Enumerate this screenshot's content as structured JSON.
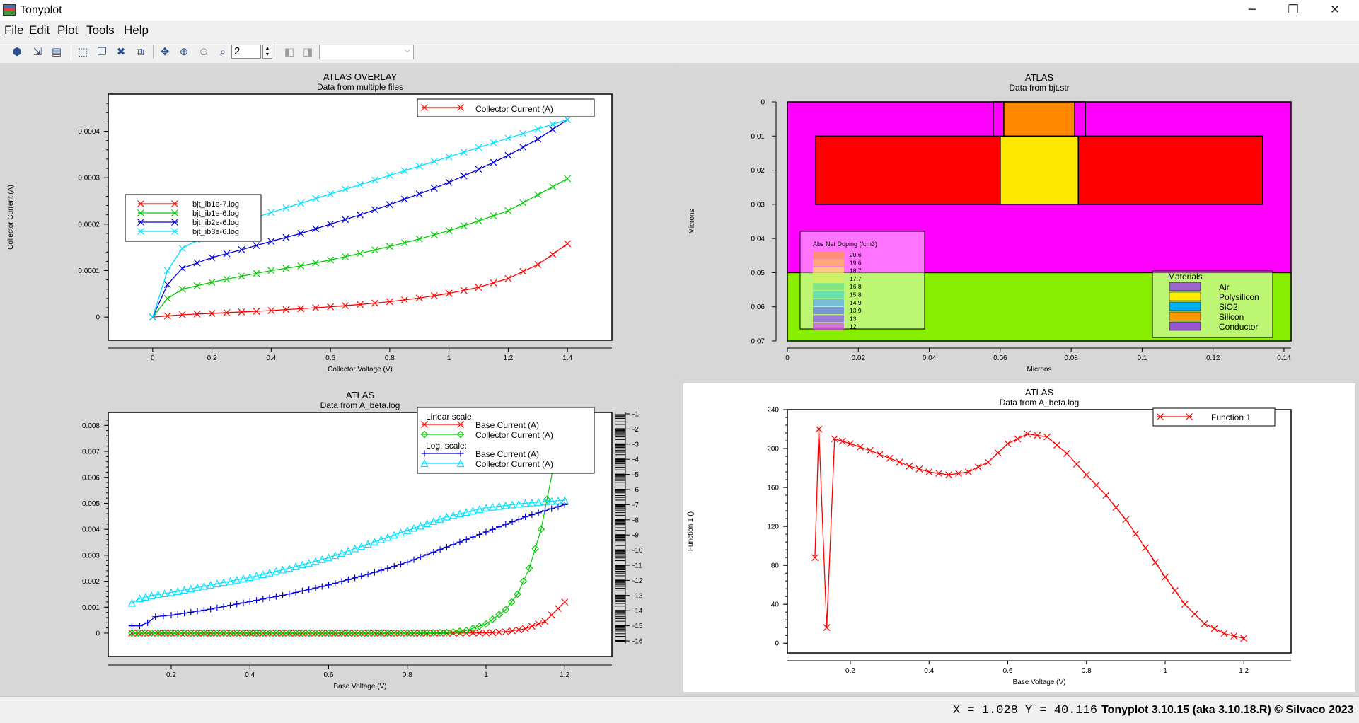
{
  "window": {
    "title": "Tonyplot",
    "minimize_glyph": "─",
    "restore_glyph": "❐",
    "close_glyph": "✕"
  },
  "menu": {
    "items": [
      {
        "label": "File",
        "accel": "F",
        "rest": "ile"
      },
      {
        "label": "Edit",
        "accel": "E",
        "rest": "dit"
      },
      {
        "label": "Plot",
        "accel": "P",
        "rest": "lot"
      },
      {
        "label": "Tools",
        "accel": "T",
        "rest": "ools"
      },
      {
        "label": "Help",
        "accel": "H",
        "rest": "elp"
      }
    ]
  },
  "toolbar": {
    "zoom_value": "2",
    "combo_value": "",
    "icons": [
      "load-icon",
      "export-icon",
      "print-icon",
      "select-region-icon",
      "copy-icon",
      "delete-icon",
      "copy-stack-icon",
      "pan-icon",
      "zoom-in-icon",
      "zoom-out-icon",
      "zoom-box-icon",
      "prev-frame-icon",
      "next-frame-icon"
    ]
  },
  "panels": {
    "overlay": {
      "chart_data": {
        "type": "line",
        "title": "ATLAS OVERLAY",
        "subtitle": "Data from multiple files",
        "xlabel": "Collector Voltage (V)",
        "ylabel": "Collector Current (A)",
        "xlim": [
          -0.15,
          1.55
        ],
        "ylim": [
          -5e-05,
          0.00048
        ],
        "x_ticks": [
          "0",
          "0.2",
          "0.4",
          "0.6",
          "0.8",
          "1",
          "1.2",
          "1.4"
        ],
        "y_ticks": [
          "0",
          "0.0001",
          "0.0002",
          "0.0003",
          "0.0004"
        ],
        "legend_title": "Collector Current (A)",
        "series": [
          {
            "name": "bjt_ib1e-7.log",
            "color": "#ff0000",
            "x": [
              0,
              0.1,
              0.2,
              0.3,
              0.4,
              0.5,
              0.6,
              0.7,
              0.8,
              0.9,
              1.0,
              1.1,
              1.2,
              1.3,
              1.35,
              1.4
            ],
            "y": [
              0,
              5e-06,
              8e-06,
              1.1e-05,
              1.4e-05,
              1.8e-05,
              2.2e-05,
              2.7e-05,
              3.3e-05,
              4.1e-05,
              5.1e-05,
              6.4e-05,
              8.3e-05,
              0.000113,
              0.000135,
              0.000158
            ]
          },
          {
            "name": "bjt_ib1e-6.log",
            "color": "#00cc00",
            "x": [
              0,
              0.05,
              0.1,
              0.2,
              0.3,
              0.4,
              0.5,
              0.6,
              0.7,
              0.8,
              0.9,
              1.0,
              1.1,
              1.2,
              1.3,
              1.4
            ],
            "y": [
              0,
              4e-05,
              6e-05,
              7.5e-05,
              8.8e-05,
              0.0001,
              0.00011,
              0.000123,
              0.000137,
              0.000152,
              0.000168,
              0.000186,
              0.000207,
              0.000229,
              0.000263,
              0.000298
            ]
          },
          {
            "name": "bjt_ib2e-6.log",
            "color": "#0000dd",
            "x": [
              0,
              0.05,
              0.1,
              0.2,
              0.3,
              0.4,
              0.5,
              0.6,
              0.7,
              0.8,
              0.9,
              1.0,
              1.1,
              1.2,
              1.3,
              1.4
            ],
            "y": [
              0,
              7e-05,
              0.000105,
              0.000128,
              0.000145,
              0.000163,
              0.00018,
              0.0002,
              0.00022,
              0.000242,
              0.000265,
              0.00029,
              0.000318,
              0.000348,
              0.000383,
              0.000425
            ]
          },
          {
            "name": "bjt_ib3e-6.log",
            "color": "#00e0ff",
            "x": [
              0,
              0.05,
              0.1,
              0.2,
              0.3,
              0.4,
              0.5,
              0.6,
              0.7,
              0.8,
              0.9,
              1.0,
              1.1,
              1.2,
              1.3,
              1.4
            ],
            "y": [
              0,
              0.0001,
              0.000148,
              0.000183,
              0.000205,
              0.000225,
              0.000245,
              0.000265,
              0.000285,
              0.000305,
              0.000325,
              0.000345,
              0.000365,
              0.000385,
              0.000405,
              0.000425
            ]
          }
        ]
      }
    },
    "structure": {
      "chart_data": {
        "type": "heatmap",
        "title": "ATLAS",
        "subtitle": "Data from bjt.str",
        "xlabel": "Microns",
        "ylabel": "Microns",
        "xlim": [
          0,
          0.142
        ],
        "ylim": [
          0,
          0.07
        ],
        "x_ticks": [
          "0",
          "0.02",
          "0.04",
          "0.06",
          "0.08",
          "0.1",
          "0.12",
          "0.14"
        ],
        "y_ticks": [
          "0",
          "0.01",
          "0.02",
          "0.03",
          "0.04",
          "0.05",
          "0.06",
          "0.07"
        ],
        "regions": [
          {
            "material": "SiO2",
            "color": "#ff00ff",
            "x0": 0,
            "x1": 0.142,
            "y0": 0,
            "y1": 0.05
          },
          {
            "material": "Silicon",
            "color": "#88ee00",
            "x0": 0,
            "x1": 0.142,
            "y0": 0.05,
            "y1": 0.07
          },
          {
            "material": "Conductor",
            "color": "#ff0000",
            "x0": 0.008,
            "x1": 0.06,
            "y0": 0.01,
            "y1": 0.03
          },
          {
            "material": "Conductor",
            "color": "#ff0000",
            "x0": 0.082,
            "x1": 0.134,
            "y0": 0.01,
            "y1": 0.03
          },
          {
            "material": "Polysilicon",
            "color": "#ffe800",
            "x0": 0.06,
            "x1": 0.082,
            "y0": 0.01,
            "y1": 0.03
          },
          {
            "material": "Polysilicon",
            "color": "#ff8800",
            "x0": 0.061,
            "x1": 0.081,
            "y0": 0,
            "y1": 0.01
          },
          {
            "material": "Conductor",
            "color": "#ff00ff",
            "x0": 0.058,
            "x1": 0.061,
            "y0": 0,
            "y1": 0.01
          },
          {
            "material": "Conductor",
            "color": "#ff00ff",
            "x0": 0.081,
            "x1": 0.084,
            "y0": 0,
            "y1": 0.01
          }
        ],
        "doping_legend": {
          "title": "Abs Net Doping (/cm3)",
          "labels": [
            "20.6",
            "19.6",
            "18.7",
            "17.7",
            "16.8",
            "15.8",
            "14.9",
            "13.9",
            "13",
            "12"
          ],
          "colors": [
            "#ff9a3c",
            "#ffc040",
            "#ffee55",
            "#d8f060",
            "#66e08a",
            "#40d8c8",
            "#56a8ff",
            "#5a70ff",
            "#8a4cff",
            "#e040ff"
          ]
        },
        "materials_legend": {
          "title": "Materials",
          "items": [
            {
              "name": "Air",
              "color": "#9966cc"
            },
            {
              "name": "Polysilicon",
              "color": "#ffee00"
            },
            {
              "name": "SiO2",
              "color": "#00b0f0"
            },
            {
              "name": "Silicon",
              "color": "#ff9900"
            },
            {
              "name": "Conductor",
              "color": "#9955cc"
            }
          ]
        }
      }
    },
    "beta": {
      "chart_data": {
        "type": "line",
        "title": "ATLAS",
        "subtitle": "Data from A_beta.log",
        "xlabel": "Base Voltage (V)",
        "ylabel": "",
        "xlim": [
          0.04,
          1.32
        ],
        "ylim": [
          -0.0009,
          0.0085
        ],
        "y2lim": [
          -16,
          -1
        ],
        "x_ticks": [
          "0.2",
          "0.4",
          "0.6",
          "0.8",
          "1",
          "1.2"
        ],
        "y_ticks": [
          "0",
          "0.001",
          "0.002",
          "0.003",
          "0.004",
          "0.005",
          "0.006",
          "0.007",
          "0.008"
        ],
        "y2_ticks": [
          "-1",
          "-2",
          "-3",
          "-4",
          "-5",
          "-6",
          "-7",
          "-8",
          "-9",
          "-10",
          "-11",
          "-12",
          "-13",
          "-14",
          "-15",
          "-16"
        ],
        "legend": {
          "linear_heading": "Linear scale:",
          "log_heading": "Log. scale:",
          "entries": [
            "Base Current (A)",
            "Collector Current (A)",
            "Base Current (A)",
            "Collector Current (A)"
          ]
        },
        "series": [
          {
            "name": "Base Current (A)",
            "scale": "linear",
            "color": "#ff0000",
            "x": [
              0.1,
              0.2,
              0.3,
              0.4,
              0.5,
              0.6,
              0.7,
              0.8,
              0.9,
              1.0,
              1.05,
              1.1,
              1.15,
              1.2
            ],
            "y": [
              0,
              0,
              0,
              0,
              0,
              0,
              0,
              0,
              0,
              1e-05,
              5e-05,
              0.00017,
              0.00045,
              0.0012
            ]
          },
          {
            "name": "Collector Current (A)",
            "scale": "linear",
            "color": "#00cc00",
            "x": [
              0.1,
              0.2,
              0.3,
              0.4,
              0.5,
              0.6,
              0.7,
              0.8,
              0.9,
              0.95,
              1.0,
              1.05,
              1.08,
              1.11,
              1.14,
              1.17,
              1.2
            ],
            "y": [
              0,
              0,
              0,
              0,
              0,
              0,
              0,
              0,
              2e-05,
              0.0001,
              0.00035,
              0.0009,
              0.0015,
              0.0025,
              0.004,
              0.0063,
              0.0078
            ]
          },
          {
            "name": "Base Current (A)",
            "scale": "log",
            "color": "#0000dd",
            "x": [
              0.1,
              0.12,
              0.14,
              0.16,
              0.2,
              0.3,
              0.4,
              0.5,
              0.6,
              0.7,
              0.8,
              0.9,
              1.0,
              1.1,
              1.2
            ],
            "y": [
              -15,
              -15,
              -14.8,
              -14.4,
              -14.3,
              -13.9,
              -13.4,
              -12.9,
              -12.3,
              -11.6,
              -10.8,
              -9.8,
              -8.8,
              -7.8,
              -7.0
            ]
          },
          {
            "name": "Collector Current (A)",
            "scale": "log",
            "color": "#00e0ff",
            "x": [
              0.1,
              0.12,
              0.15,
              0.2,
              0.3,
              0.4,
              0.5,
              0.6,
              0.7,
              0.8,
              0.9,
              1.0,
              1.1,
              1.2
            ],
            "y": [
              -13.5,
              -13.2,
              -13.0,
              -12.8,
              -12.3,
              -11.8,
              -11.2,
              -10.5,
              -9.6,
              -8.7,
              -7.8,
              -7.2,
              -6.9,
              -6.7
            ]
          }
        ]
      }
    },
    "function": {
      "chart_data": {
        "type": "line",
        "title": "ATLAS",
        "subtitle": "Data from A_beta.log",
        "xlabel": "Base Voltage (V)",
        "ylabel": "Function 1 ()",
        "xlim": [
          0.04,
          1.32
        ],
        "ylim": [
          -10,
          240
        ],
        "x_ticks": [
          "0.2",
          "0.4",
          "0.6",
          "0.8",
          "1",
          "1.2"
        ],
        "y_ticks": [
          "0",
          "40",
          "80",
          "120",
          "160",
          "200",
          "240"
        ],
        "series": [
          {
            "name": "Function 1",
            "color": "#ff0000",
            "x": [
              0.11,
              0.12,
              0.14,
              0.16,
              0.2,
              0.25,
              0.3,
              0.35,
              0.4,
              0.45,
              0.5,
              0.55,
              0.6,
              0.65,
              0.7,
              0.75,
              0.8,
              0.85,
              0.9,
              0.95,
              1.0,
              1.05,
              1.1,
              1.15,
              1.2
            ],
            "y": [
              88,
              220,
              16,
              210,
              205,
              198,
              190,
              182,
              176,
              173,
              176,
              186,
              205,
              215,
              212,
              195,
              173,
              152,
              127,
              98,
              68,
              40,
              20,
              10,
              5
            ]
          }
        ]
      }
    }
  },
  "status": {
    "coords": "X = 1.028 Y = 40.116",
    "version": "Tonyplot 3.10.15 (aka 3.10.18.R) © Silvaco 2023"
  }
}
